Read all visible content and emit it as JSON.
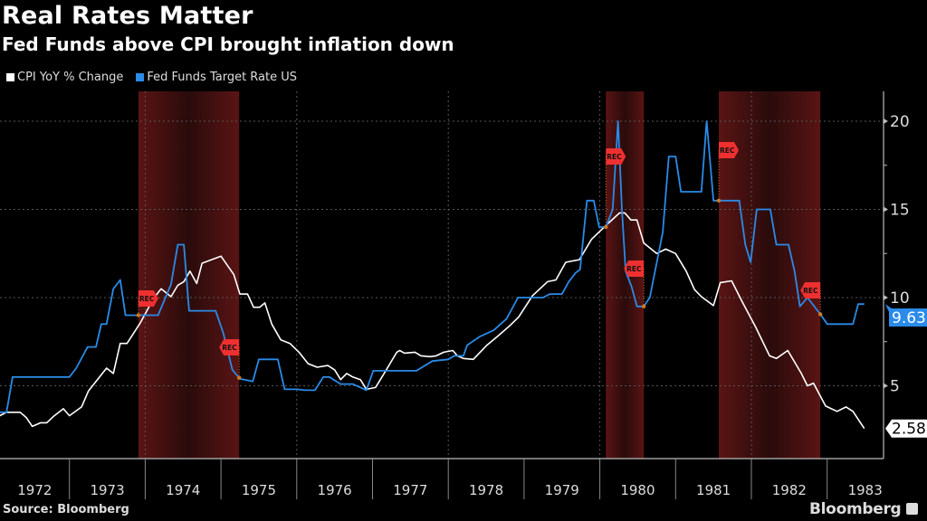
{
  "chart_data": {
    "type": "line",
    "title": "Real Rates Matter",
    "subtitle": "Fed Funds above CPI brought inflation down",
    "source": "Source: Bloomberg",
    "brand": "Bloomberg",
    "ylim": [
      0,
      21.5
    ],
    "xlim": [
      1972.08,
      1983.6
    ],
    "yticks": [
      5,
      10,
      15,
      20
    ],
    "ytick_labels": [
      "5",
      "10",
      "15",
      "20"
    ],
    "year_labels": [
      "1972",
      "1973",
      "1974",
      "1975",
      "1976",
      "1977",
      "1978",
      "1979",
      "1980",
      "1981",
      "1982",
      "1983"
    ],
    "grid": true,
    "legend_position": "top-left",
    "colors": {
      "cpi": "#ffffff",
      "fed": "#2a8be8",
      "recession": "#5a1414"
    },
    "recession_label": "REC",
    "recessions": [
      [
        1973.91,
        1975.24
      ],
      [
        1980.08,
        1980.58
      ],
      [
        1981.57,
        1982.91
      ]
    ],
    "series": [
      {
        "name": "CPI YoY % Change",
        "last_value": "2.58",
        "points": [
          [
            1972.08,
            3.3
          ],
          [
            1972.17,
            3.5
          ],
          [
            1972.35,
            3.5
          ],
          [
            1972.43,
            3.2
          ],
          [
            1972.51,
            2.7
          ],
          [
            1972.62,
            2.9
          ],
          [
            1972.7,
            2.9
          ],
          [
            1972.8,
            3.3
          ],
          [
            1972.92,
            3.7
          ],
          [
            1973.0,
            3.3
          ],
          [
            1973.16,
            3.8
          ],
          [
            1973.25,
            4.7
          ],
          [
            1973.49,
            6.0
          ],
          [
            1973.58,
            5.7
          ],
          [
            1973.67,
            7.4
          ],
          [
            1973.76,
            7.4
          ],
          [
            1973.94,
            8.6
          ],
          [
            1974.11,
            9.95
          ],
          [
            1974.21,
            10.5
          ],
          [
            1974.34,
            10.05
          ],
          [
            1974.43,
            10.7
          ],
          [
            1974.51,
            10.9
          ],
          [
            1974.59,
            11.5
          ],
          [
            1974.68,
            10.8
          ],
          [
            1974.75,
            11.95
          ],
          [
            1975.0,
            12.35
          ],
          [
            1975.17,
            11.3
          ],
          [
            1975.25,
            10.2
          ],
          [
            1975.35,
            10.2
          ],
          [
            1975.43,
            9.45
          ],
          [
            1975.51,
            9.45
          ],
          [
            1975.58,
            9.7
          ],
          [
            1975.67,
            8.5
          ],
          [
            1975.79,
            7.6
          ],
          [
            1975.91,
            7.4
          ],
          [
            1976.03,
            6.9
          ],
          [
            1976.15,
            6.25
          ],
          [
            1976.27,
            6.05
          ],
          [
            1976.41,
            6.15
          ],
          [
            1976.5,
            5.9
          ],
          [
            1976.58,
            5.35
          ],
          [
            1976.66,
            5.7
          ],
          [
            1976.74,
            5.5
          ],
          [
            1976.84,
            5.35
          ],
          [
            1976.92,
            4.8
          ],
          [
            1977.04,
            4.9
          ],
          [
            1977.16,
            5.75
          ],
          [
            1977.32,
            6.9
          ],
          [
            1977.36,
            7.0
          ],
          [
            1977.42,
            6.85
          ],
          [
            1977.56,
            6.9
          ],
          [
            1977.64,
            6.7
          ],
          [
            1977.76,
            6.65
          ],
          [
            1977.84,
            6.7
          ],
          [
            1977.94,
            6.9
          ],
          [
            1978.06,
            7.0
          ],
          [
            1978.12,
            6.7
          ],
          [
            1978.2,
            6.55
          ],
          [
            1978.33,
            6.5
          ],
          [
            1978.51,
            7.3
          ],
          [
            1978.65,
            7.8
          ],
          [
            1978.81,
            8.4
          ],
          [
            1978.93,
            8.9
          ],
          [
            1979.11,
            10.1
          ],
          [
            1979.31,
            10.9
          ],
          [
            1979.42,
            11.0
          ],
          [
            1979.55,
            12.0
          ],
          [
            1979.73,
            12.15
          ],
          [
            1979.89,
            13.3
          ],
          [
            1980.07,
            14.05
          ],
          [
            1980.26,
            14.8
          ],
          [
            1980.33,
            14.8
          ],
          [
            1980.41,
            14.4
          ],
          [
            1980.49,
            14.4
          ],
          [
            1980.58,
            13.1
          ],
          [
            1980.75,
            12.5
          ],
          [
            1980.87,
            12.75
          ],
          [
            1981.0,
            12.5
          ],
          [
            1981.14,
            11.5
          ],
          [
            1981.25,
            10.45
          ],
          [
            1981.34,
            10.05
          ],
          [
            1981.5,
            9.55
          ],
          [
            1981.59,
            10.85
          ],
          [
            1981.74,
            10.95
          ],
          [
            1981.88,
            9.75
          ],
          [
            1982.06,
            8.3
          ],
          [
            1982.24,
            6.7
          ],
          [
            1982.33,
            6.55
          ],
          [
            1982.48,
            7.0
          ],
          [
            1982.66,
            5.7
          ],
          [
            1982.74,
            5.0
          ],
          [
            1982.82,
            5.15
          ],
          [
            1982.98,
            3.85
          ],
          [
            1983.13,
            3.55
          ],
          [
            1983.25,
            3.8
          ],
          [
            1983.34,
            3.55
          ],
          [
            1983.49,
            2.58
          ]
        ]
      },
      {
        "name": "Fed Funds Target Rate US",
        "last_value": "9.63",
        "points": [
          [
            1972.08,
            3.5
          ],
          [
            1972.17,
            3.5
          ],
          [
            1972.25,
            5.5
          ],
          [
            1973.0,
            5.5
          ],
          [
            1973.09,
            6.0
          ],
          [
            1973.24,
            7.2
          ],
          [
            1973.35,
            7.2
          ],
          [
            1973.42,
            8.5
          ],
          [
            1973.49,
            8.5
          ],
          [
            1973.58,
            10.5
          ],
          [
            1973.67,
            11.0
          ],
          [
            1973.74,
            9.0
          ],
          [
            1974.17,
            9.0
          ],
          [
            1974.34,
            10.75
          ],
          [
            1974.43,
            13.0
          ],
          [
            1974.51,
            13.0
          ],
          [
            1974.58,
            9.25
          ],
          [
            1974.93,
            9.25
          ],
          [
            1975.03,
            8.0
          ],
          [
            1975.15,
            5.9
          ],
          [
            1975.25,
            5.4
          ],
          [
            1975.42,
            5.25
          ],
          [
            1975.5,
            6.5
          ],
          [
            1975.75,
            6.5
          ],
          [
            1975.84,
            4.8
          ],
          [
            1976.01,
            4.8
          ],
          [
            1976.1,
            4.75
          ],
          [
            1976.24,
            4.75
          ],
          [
            1976.35,
            5.5
          ],
          [
            1976.43,
            5.5
          ],
          [
            1976.58,
            5.1
          ],
          [
            1976.74,
            5.1
          ],
          [
            1976.92,
            4.75
          ],
          [
            1977.01,
            5.85
          ],
          [
            1977.58,
            5.85
          ],
          [
            1977.79,
            6.4
          ],
          [
            1978.0,
            6.5
          ],
          [
            1978.08,
            6.7
          ],
          [
            1978.2,
            6.7
          ],
          [
            1978.25,
            7.3
          ],
          [
            1978.42,
            7.8
          ],
          [
            1978.6,
            8.15
          ],
          [
            1978.77,
            8.8
          ],
          [
            1978.92,
            10.0
          ],
          [
            1979.25,
            10.0
          ],
          [
            1979.34,
            10.2
          ],
          [
            1979.5,
            10.2
          ],
          [
            1979.59,
            10.9
          ],
          [
            1979.68,
            11.4
          ],
          [
            1979.74,
            11.6
          ],
          [
            1979.83,
            15.5
          ],
          [
            1979.92,
            15.5
          ],
          [
            1979.99,
            14.0
          ],
          [
            1980.08,
            14.0
          ],
          [
            1980.17,
            15.0
          ],
          [
            1980.24,
            20.0
          ],
          [
            1980.29,
            15.1
          ],
          [
            1980.34,
            11.5
          ],
          [
            1980.42,
            10.6
          ],
          [
            1980.49,
            9.5
          ],
          [
            1980.58,
            9.5
          ],
          [
            1980.66,
            10.0
          ],
          [
            1980.83,
            13.7
          ],
          [
            1980.91,
            18.0
          ],
          [
            1981.0,
            18.0
          ],
          [
            1981.07,
            16.0
          ],
          [
            1981.34,
            16.0
          ],
          [
            1981.41,
            20.0
          ],
          [
            1981.5,
            15.5
          ],
          [
            1981.84,
            15.5
          ],
          [
            1981.92,
            13.0
          ],
          [
            1981.99,
            12.0
          ],
          [
            1982.07,
            15.0
          ],
          [
            1982.25,
            15.0
          ],
          [
            1982.33,
            13.0
          ],
          [
            1982.49,
            13.0
          ],
          [
            1982.57,
            11.5
          ],
          [
            1982.64,
            9.5
          ],
          [
            1982.74,
            10.0
          ],
          [
            1982.92,
            9.0
          ],
          [
            1983.0,
            8.5
          ],
          [
            1983.34,
            8.5
          ],
          [
            1983.41,
            9.63
          ],
          [
            1983.49,
            9.63
          ]
        ]
      }
    ]
  }
}
